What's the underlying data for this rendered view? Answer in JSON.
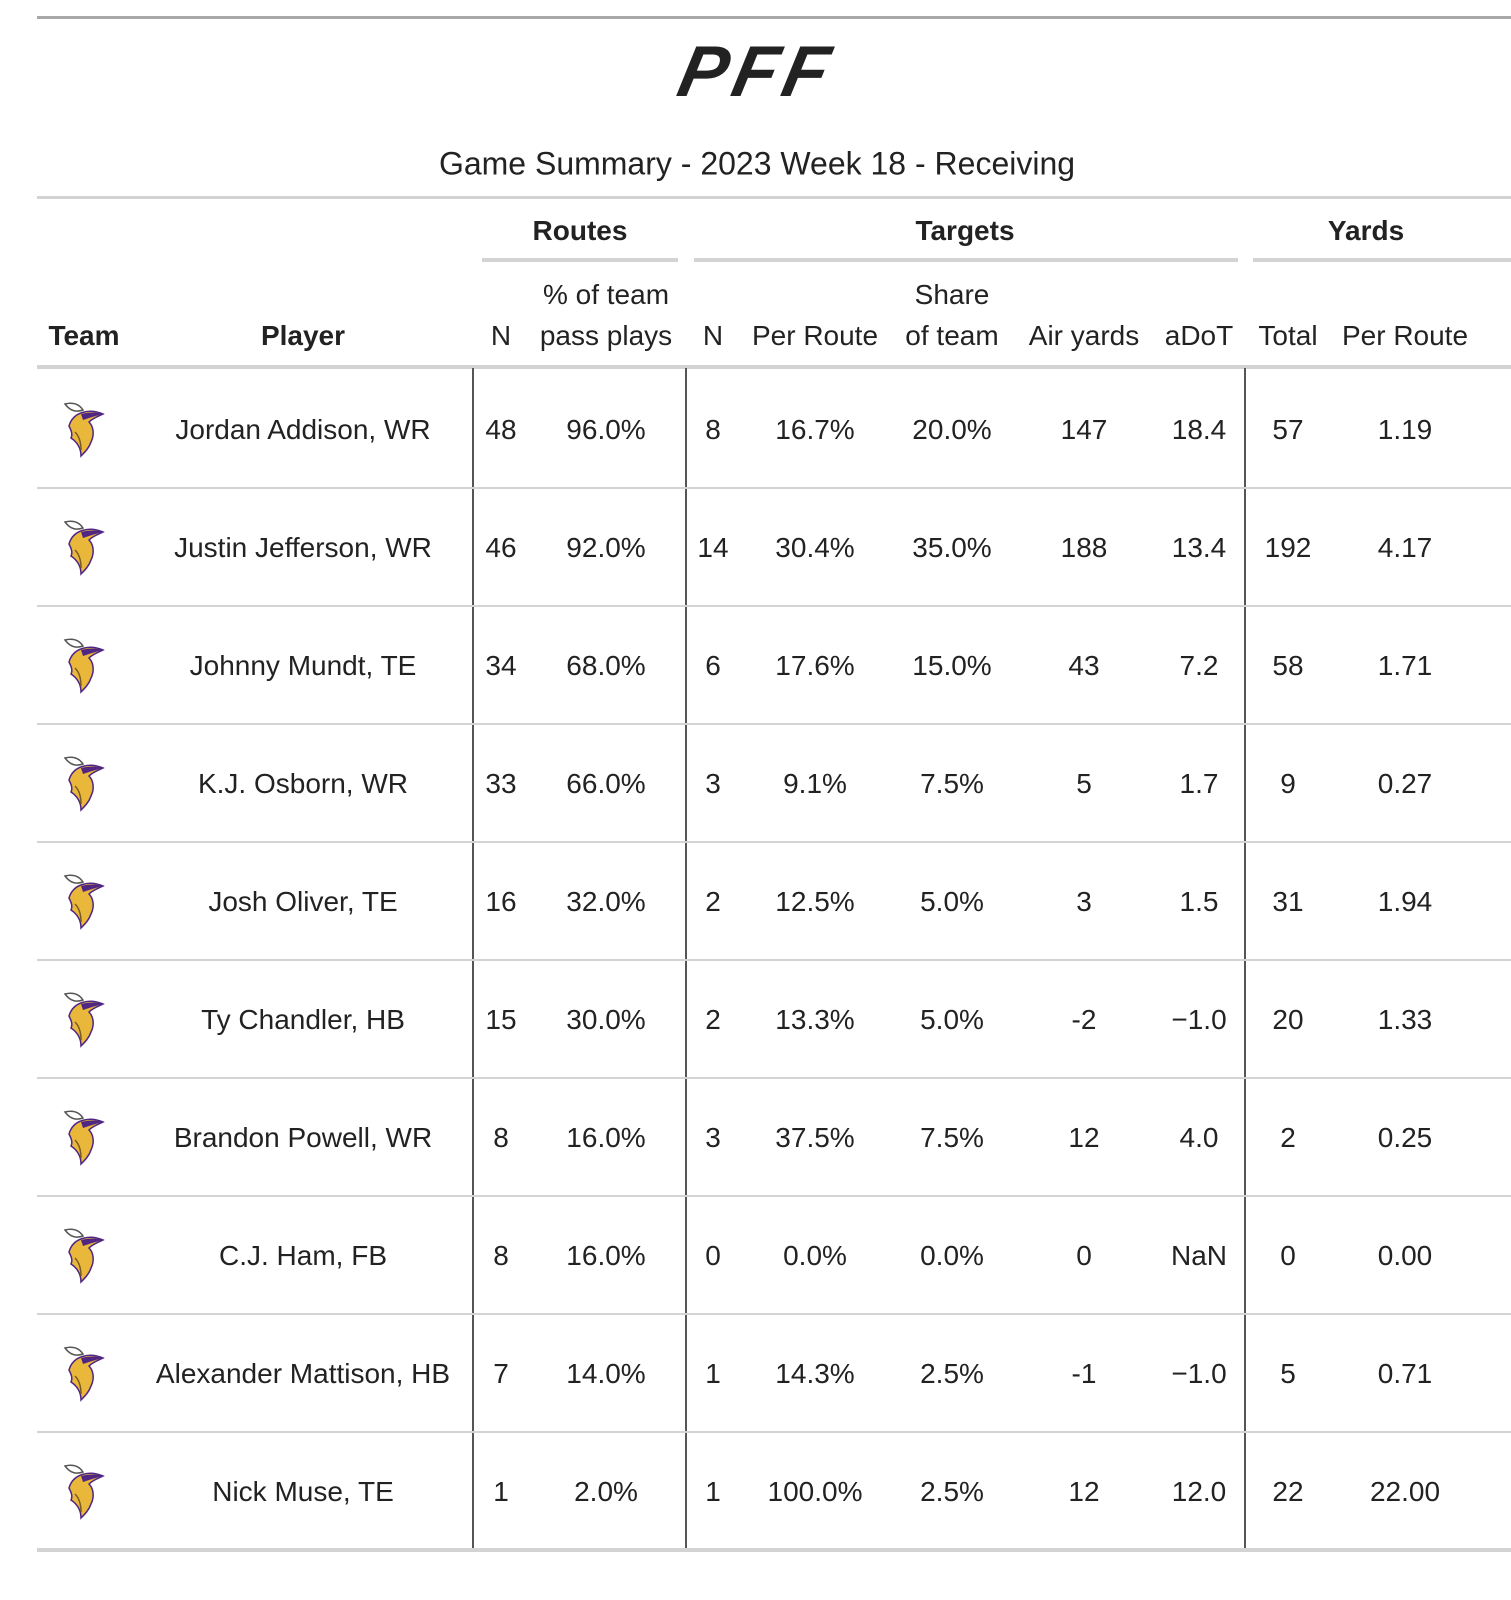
{
  "header": {
    "logo": "PFF",
    "title": "Game Summary - 2023 Week 18 - Receiving"
  },
  "table": {
    "spanners": [
      "Routes",
      "Targets",
      "Yards"
    ],
    "columns": [
      [
        "Team"
      ],
      [
        "Player"
      ],
      [
        "N"
      ],
      [
        "% of team",
        "pass plays"
      ],
      [
        "N"
      ],
      [
        "Per Route"
      ],
      [
        "Share",
        "of team"
      ],
      [
        "Air yards"
      ],
      [
        "aDoT"
      ],
      [
        "Total"
      ],
      [
        "Per Route"
      ]
    ],
    "rows": [
      [
        "Jordan Addison, WR",
        "48",
        "96.0%",
        "8",
        "16.7%",
        "20.0%",
        "147",
        "18.4",
        "57",
        "1.19"
      ],
      [
        "Justin Jefferson, WR",
        "46",
        "92.0%",
        "14",
        "30.4%",
        "35.0%",
        "188",
        "13.4",
        "192",
        "4.17"
      ],
      [
        "Johnny Mundt, TE",
        "34",
        "68.0%",
        "6",
        "17.6%",
        "15.0%",
        "43",
        "7.2",
        "58",
        "1.71"
      ],
      [
        "K.J. Osborn, WR",
        "33",
        "66.0%",
        "3",
        "9.1%",
        "7.5%",
        "5",
        "1.7",
        "9",
        "0.27"
      ],
      [
        "Josh Oliver, TE",
        "16",
        "32.0%",
        "2",
        "12.5%",
        "5.0%",
        "3",
        "1.5",
        "31",
        "1.94"
      ],
      [
        "Ty Chandler, HB",
        "15",
        "30.0%",
        "2",
        "13.3%",
        "5.0%",
        "-2",
        "−1.0",
        "20",
        "1.33"
      ],
      [
        "Brandon Powell, WR",
        "8",
        "16.0%",
        "3",
        "37.5%",
        "7.5%",
        "12",
        "4.0",
        "2",
        "0.25"
      ],
      [
        "C.J. Ham, FB",
        "8",
        "16.0%",
        "0",
        "0.0%",
        "0.0%",
        "0",
        "NaN",
        "0",
        "0.00"
      ],
      [
        "Alexander Mattison, HB",
        "7",
        "14.0%",
        "1",
        "14.3%",
        "2.5%",
        "-1",
        "−1.0",
        "5",
        "0.71"
      ],
      [
        "Nick Muse, TE",
        "1",
        "2.0%",
        "1",
        "100.0%",
        "2.5%",
        "12",
        "12.0",
        "22",
        "22.00"
      ]
    ]
  }
}
